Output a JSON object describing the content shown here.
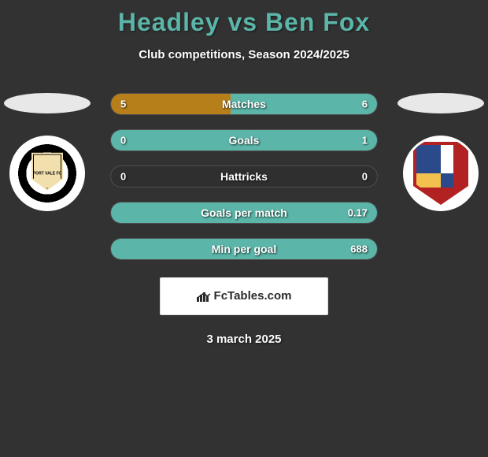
{
  "title": "Headley vs Ben Fox",
  "subtitle": "Club competitions, Season 2024/2025",
  "date": "3 march 2025",
  "logo_text": "FcTables.com",
  "colors": {
    "left_bar": "#b67f1a",
    "right_bar": "#5bb5a8",
    "neutral_bar": "#2f2f2f",
    "bar_border": "rgba(255,255,255,0.15)",
    "title_color": "#5bb5a8",
    "background": "#323232"
  },
  "bars": [
    {
      "label": "Matches",
      "left_val": "5",
      "right_val": "6",
      "left_pct": 45,
      "right_pct": 55,
      "left_zero": false,
      "right_zero": false
    },
    {
      "label": "Goals",
      "left_val": "0",
      "right_val": "1",
      "left_pct": 0,
      "right_pct": 100,
      "left_zero": true,
      "right_zero": false
    },
    {
      "label": "Hattricks",
      "left_val": "0",
      "right_val": "0",
      "left_pct": 0,
      "right_pct": 0,
      "left_zero": true,
      "right_zero": true
    },
    {
      "label": "Goals per match",
      "left_val": "",
      "right_val": "0.17",
      "left_pct": 0,
      "right_pct": 100,
      "left_zero": true,
      "right_zero": false
    },
    {
      "label": "Min per goal",
      "left_val": "",
      "right_val": "688",
      "left_pct": 0,
      "right_pct": 100,
      "left_zero": true,
      "right_zero": false
    }
  ]
}
